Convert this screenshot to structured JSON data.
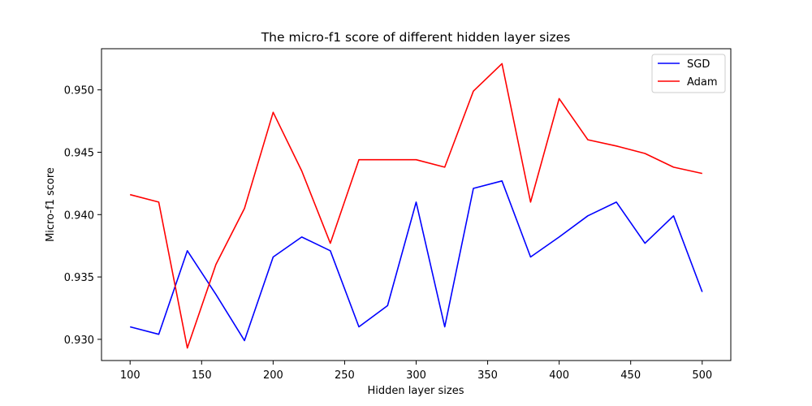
{
  "chart_data": {
    "type": "line",
    "title": "The micro-f1 score of different hidden layer sizes",
    "xlabel": "Hidden layer sizes",
    "ylabel": "Micro-f1 score",
    "x": [
      100,
      120,
      140,
      160,
      180,
      200,
      220,
      240,
      260,
      280,
      300,
      320,
      340,
      360,
      380,
      400,
      420,
      440,
      460,
      480,
      500
    ],
    "series": [
      {
        "name": "SGD",
        "color": "#0000ff",
        "values": [
          0.931,
          0.9304,
          0.9371,
          0.9336,
          0.9299,
          0.9366,
          0.9382,
          0.9371,
          0.931,
          0.9327,
          0.941,
          0.931,
          0.9421,
          0.9427,
          0.9366,
          0.9382,
          0.9399,
          0.941,
          0.9377,
          0.9399,
          0.9338
        ]
      },
      {
        "name": "Adam",
        "color": "#ff0000",
        "values": [
          0.9416,
          0.941,
          0.9293,
          0.936,
          0.9405,
          0.9482,
          0.9435,
          0.9377,
          0.9444,
          0.9444,
          0.9444,
          0.9438,
          0.9499,
          0.9521,
          0.941,
          0.9493,
          0.946,
          0.9455,
          0.9449,
          0.9438,
          0.9433
        ]
      }
    ],
    "xlim": [
      80,
      520
    ],
    "ylim": [
      0.9283,
      0.9533
    ],
    "xticks": [
      100,
      150,
      200,
      250,
      300,
      350,
      400,
      450,
      500
    ],
    "yticks": [
      0.93,
      0.935,
      0.94,
      0.945,
      0.95
    ],
    "ytick_labels": [
      "0.930",
      "0.935",
      "0.940",
      "0.945",
      "0.950"
    ],
    "legend_position": "top-right",
    "grid": false
  }
}
